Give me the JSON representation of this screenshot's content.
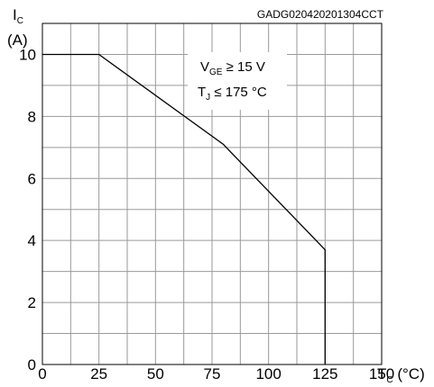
{
  "chart_data": {
    "type": "line",
    "reference_code": "GADG020420201304CCT",
    "y_axis": {
      "symbol": "I",
      "subscript": "C",
      "unit": "(A)"
    },
    "x_axis": {
      "symbol": "T",
      "subscript": "C",
      "unit": " (°C)"
    },
    "xlim": [
      0,
      150
    ],
    "ylim": [
      0,
      11
    ],
    "x_ticks": [
      0,
      25,
      50,
      75,
      100,
      125,
      150
    ],
    "y_ticks": [
      0,
      2,
      4,
      6,
      8,
      10
    ],
    "grid": true,
    "conditions": [
      {
        "symbol": "V",
        "subscript": "GE",
        "text": " ≥ 15 V"
      },
      {
        "symbol": "T",
        "subscript": "J",
        "text": " ≤ 175 °C"
      }
    ],
    "series": [
      {
        "x": [
          0,
          25,
          80,
          125,
          125
        ],
        "y": [
          10,
          10,
          7.1,
          3.7,
          0
        ]
      }
    ]
  }
}
